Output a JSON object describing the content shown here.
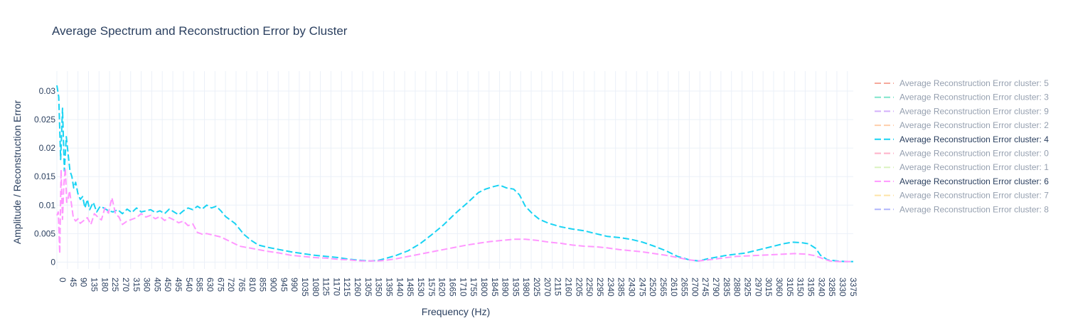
{
  "chart_data": {
    "type": "line",
    "title": "Average Spectrum and Reconstruction Error by Cluster",
    "xlabel": "Frequency (Hz)",
    "ylabel": "Amplitude / Reconstruction Error",
    "xlim": [
      0,
      3400
    ],
    "ylim": [
      -0.0012,
      0.0335
    ],
    "x_tick_step": 45,
    "x_tick_max": 3375,
    "y_ticks": [
      0,
      0.005,
      0.01,
      0.015,
      0.02,
      0.025,
      0.03
    ],
    "y_tick_labels": [
      "0",
      "0.005",
      "0.01",
      "0.015",
      "0.02",
      "0.025",
      "0.03"
    ],
    "grid": true,
    "legend_position": "right",
    "legend": [
      {
        "label": "Average Reconstruction Error cluster: 5",
        "color": "#EF553B",
        "visible": false
      },
      {
        "label": "Average Reconstruction Error cluster: 3",
        "color": "#00CC96",
        "visible": false
      },
      {
        "label": "Average Reconstruction Error cluster: 9",
        "color": "#AB63FA",
        "visible": false
      },
      {
        "label": "Average Reconstruction Error cluster: 2",
        "color": "#FFA15A",
        "visible": false
      },
      {
        "label": "Average Reconstruction Error cluster: 4",
        "color": "#19D3F3",
        "visible": true
      },
      {
        "label": "Average Reconstruction Error cluster: 0",
        "color": "#FF6692",
        "visible": false
      },
      {
        "label": "Average Reconstruction Error cluster: 1",
        "color": "#B6E880",
        "visible": false
      },
      {
        "label": "Average Reconstruction Error cluster: 6",
        "color": "#FF97FF",
        "visible": true
      },
      {
        "label": "Average Reconstruction Error cluster: 7",
        "color": "#FECB52",
        "visible": false
      },
      {
        "label": "Average Reconstruction Error cluster: 8",
        "color": "#636EFA",
        "visible": false
      }
    ],
    "series": [
      {
        "name": "Average Reconstruction Error cluster: 4",
        "color": "#19D3F3",
        "x": [
          0,
          8,
          16,
          24,
          32,
          40,
          48,
          56,
          64,
          72,
          80,
          90,
          100,
          110,
          120,
          130,
          140,
          155,
          170,
          185,
          200,
          220,
          240,
          260,
          280,
          300,
          320,
          340,
          360,
          380,
          400,
          420,
          440,
          460,
          480,
          500,
          520,
          540,
          560,
          580,
          600,
          620,
          640,
          660,
          680,
          700,
          720,
          740,
          760,
          780,
          800,
          830,
          860,
          900,
          950,
          1000,
          1050,
          1100,
          1150,
          1200,
          1250,
          1300,
          1340,
          1370,
          1400,
          1450,
          1500,
          1550,
          1600,
          1650,
          1700,
          1750,
          1800,
          1830,
          1860,
          1890,
          1920,
          1950,
          1975,
          2000,
          2030,
          2060,
          2100,
          2150,
          2200,
          2250,
          2300,
          2350,
          2400,
          2450,
          2500,
          2550,
          2600,
          2650,
          2700,
          2740,
          2780,
          2820,
          2860,
          2900,
          2940,
          2980,
          3020,
          3060,
          3100,
          3140,
          3180,
          3210,
          3240,
          3260,
          3290,
          3330,
          3370,
          3400
        ],
        "values": [
          0.031,
          0.029,
          0.018,
          0.027,
          0.016,
          0.022,
          0.019,
          0.016,
          0.015,
          0.013,
          0.014,
          0.012,
          0.011,
          0.0115,
          0.0095,
          0.011,
          0.0092,
          0.0105,
          0.0088,
          0.0098,
          0.0095,
          0.009,
          0.0088,
          0.0092,
          0.0085,
          0.0093,
          0.0087,
          0.0095,
          0.0088,
          0.009,
          0.0092,
          0.0087,
          0.009,
          0.0085,
          0.0093,
          0.0088,
          0.0083,
          0.009,
          0.0095,
          0.0092,
          0.0098,
          0.0093,
          0.01,
          0.0095,
          0.0098,
          0.009,
          0.008,
          0.0074,
          0.0068,
          0.0058,
          0.0048,
          0.0038,
          0.003,
          0.0026,
          0.0022,
          0.0018,
          0.0015,
          0.0012,
          0.001,
          0.0008,
          0.0005,
          0.0003,
          0.0002,
          0.0003,
          0.0006,
          0.0012,
          0.002,
          0.0032,
          0.0048,
          0.0065,
          0.0085,
          0.0103,
          0.0122,
          0.0128,
          0.0132,
          0.0135,
          0.013,
          0.0128,
          0.0118,
          0.0098,
          0.0085,
          0.0075,
          0.0068,
          0.0062,
          0.0058,
          0.0055,
          0.005,
          0.0045,
          0.0043,
          0.004,
          0.0035,
          0.0028,
          0.002,
          0.001,
          0.0004,
          0.0002,
          0.0006,
          0.0009,
          0.0012,
          0.0014,
          0.0016,
          0.002,
          0.0024,
          0.0028,
          0.0032,
          0.0035,
          0.0034,
          0.0032,
          0.0024,
          0.0012,
          0.0004,
          0.0002,
          0.0001,
          0.0001
        ]
      },
      {
        "name": "Average Reconstruction Error cluster: 6",
        "color": "#FF97FF",
        "x": [
          0,
          6,
          12,
          18,
          24,
          30,
          36,
          42,
          48,
          54,
          60,
          70,
          80,
          90,
          100,
          115,
          130,
          145,
          160,
          175,
          190,
          205,
          220,
          235,
          250,
          265,
          280,
          300,
          320,
          340,
          360,
          380,
          400,
          420,
          440,
          460,
          480,
          500,
          520,
          540,
          560,
          580,
          600,
          620,
          640,
          660,
          680,
          700,
          720,
          750,
          780,
          820,
          860,
          900,
          950,
          1000,
          1050,
          1100,
          1150,
          1200,
          1250,
          1300,
          1340,
          1370,
          1400,
          1450,
          1500,
          1550,
          1600,
          1650,
          1700,
          1750,
          1800,
          1850,
          1900,
          1950,
          2000,
          2050,
          2100,
          2150,
          2200,
          2250,
          2300,
          2350,
          2400,
          2450,
          2500,
          2550,
          2600,
          2650,
          2700,
          2740,
          2780,
          2820,
          2860,
          2900,
          2950,
          3000,
          3050,
          3100,
          3150,
          3200,
          3240,
          3270,
          3300,
          3340,
          3400
        ],
        "values": [
          0.0082,
          0.0088,
          0.0015,
          0.0162,
          0.0075,
          0.0138,
          0.0165,
          0.0105,
          0.011,
          0.0125,
          0.0108,
          0.0078,
          0.0072,
          0.0076,
          0.0068,
          0.0073,
          0.0078,
          0.0066,
          0.0085,
          0.0079,
          0.0074,
          0.0095,
          0.0086,
          0.0113,
          0.0085,
          0.0079,
          0.0066,
          0.0072,
          0.0075,
          0.0078,
          0.0085,
          0.0079,
          0.0082,
          0.0076,
          0.008,
          0.0073,
          0.0078,
          0.0074,
          0.0069,
          0.0072,
          0.0064,
          0.0067,
          0.0052,
          0.0049,
          0.005,
          0.0048,
          0.0046,
          0.0044,
          0.004,
          0.0034,
          0.0028,
          0.0025,
          0.0022,
          0.0019,
          0.0016,
          0.0012,
          0.001,
          0.0008,
          0.0007,
          0.0005,
          0.0004,
          0.0002,
          0.0002,
          0.0002,
          0.0003,
          0.0006,
          0.001,
          0.0014,
          0.0018,
          0.0022,
          0.0026,
          0.003,
          0.0033,
          0.0036,
          0.0038,
          0.004,
          0.004,
          0.0038,
          0.0035,
          0.0033,
          0.003,
          0.0028,
          0.0027,
          0.0025,
          0.0022,
          0.002,
          0.0018,
          0.0015,
          0.0012,
          0.0008,
          0.0004,
          0.0002,
          0.0004,
          0.0006,
          0.0008,
          0.001,
          0.0011,
          0.0012,
          0.0013,
          0.0014,
          0.0015,
          0.0014,
          0.0011,
          0.0006,
          0.0002,
          0.0001,
          0.0001
        ]
      }
    ]
  }
}
